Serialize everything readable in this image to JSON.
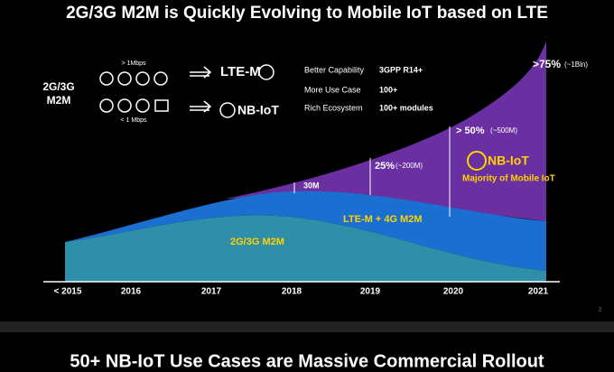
{
  "slide": {
    "title": "2G/3G M2M is Quickly Evolving to Mobile IoT based on LTE",
    "left_label": [
      "2G/3G",
      "M2M"
    ],
    "speed_high": "> 1Mbps",
    "speed_low": "< 1 Mbps",
    "tech_high": "LTE-M",
    "tech_low": "NB-IoT",
    "features": [
      [
        "Better Capability",
        "3GPP R14+"
      ],
      [
        "More Use Case",
        "100+"
      ],
      [
        "Rich Ecosystem",
        "100+ modules"
      ]
    ],
    "annotations": {
      "a2021": ">75%",
      "a2021_sub": "(~1Bln)",
      "a2020": "> 50%",
      "a2020_sub": "(~500M)",
      "a2019": "25%",
      "a2019_sub": "(~200M)",
      "a2018": "30M",
      "logo": "NB-IoT",
      "majority": "Majority of Mobile IoT",
      "lte": "LTE-M + 4G M2M",
      "legacy": "2G/3G M2M"
    },
    "years": [
      "< 2015",
      "2016",
      "2017",
      "2018",
      "2019",
      "2020",
      "2021"
    ],
    "page": "2"
  },
  "next_slide": {
    "title": "50+ NB-IoT Use Cases are Massive Commercial Rollout"
  }
}
